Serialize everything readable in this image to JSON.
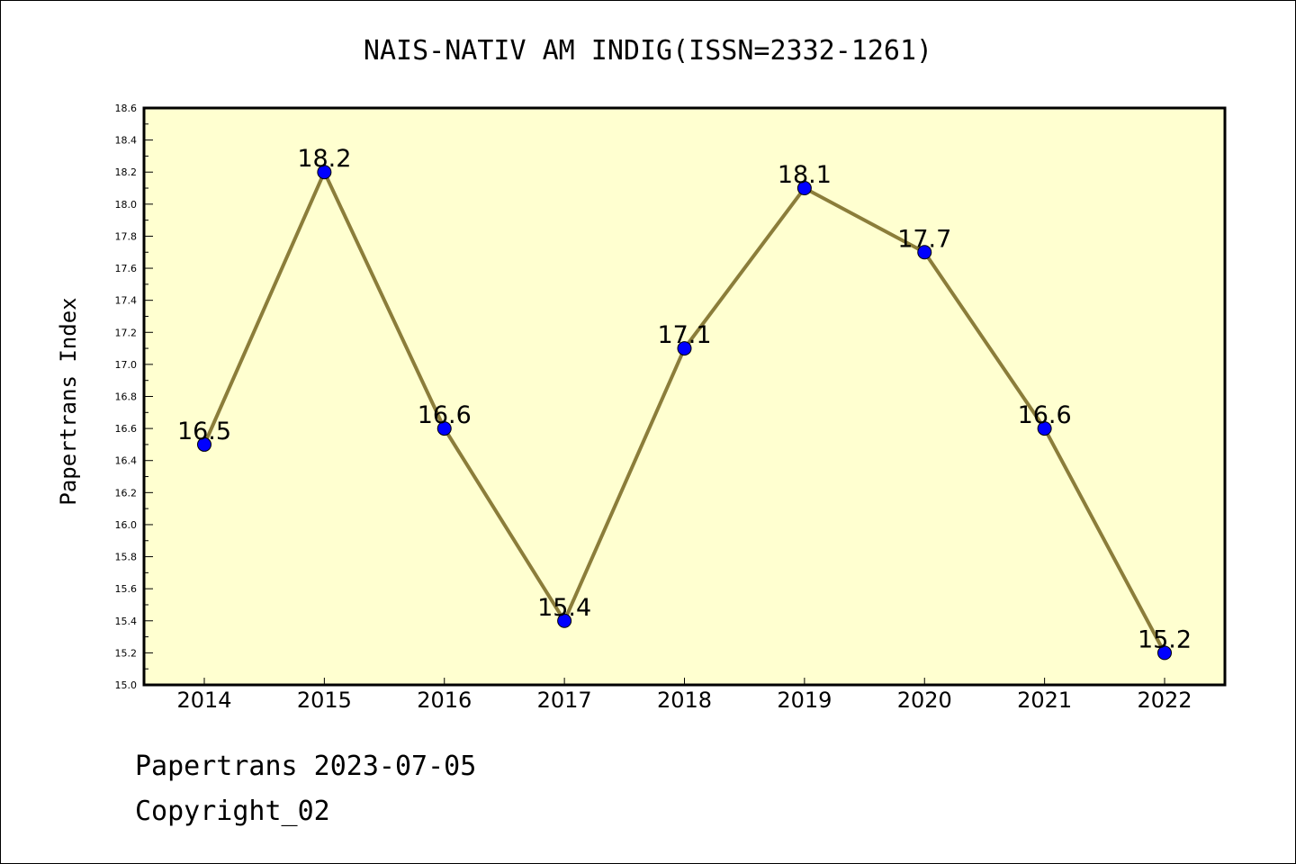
{
  "chart_data": {
    "type": "line",
    "title": "NAIS-NATIV AM INDIG(ISSN=2332-1261)",
    "ylabel": "Papertrans Index",
    "xlabel": "",
    "categories": [
      "2014",
      "2015",
      "2016",
      "2017",
      "2018",
      "2019",
      "2020",
      "2021",
      "2022"
    ],
    "series": [
      {
        "values": [
          16.5,
          18.2,
          16.6,
          15.4,
          17.1,
          18.1,
          17.7,
          16.6,
          15.2
        ],
        "labels": [
          "16.5",
          "18.2",
          "16.6",
          "15.4",
          "17.1",
          "18.1",
          "17.7",
          "16.6",
          "15.2"
        ],
        "line_color": "#8b7d3a",
        "marker_color": "#0000ff"
      }
    ],
    "ylim": [
      15.0,
      18.6
    ],
    "yticks": [
      "15.0",
      "15.2",
      "15.4",
      "15.6",
      "15.8",
      "16.0",
      "16.2",
      "16.4",
      "16.6",
      "16.8",
      "17.0",
      "17.2",
      "17.4",
      "17.6",
      "17.8",
      "18.0",
      "18.2",
      "18.4",
      "18.6"
    ],
    "grid": false,
    "plot_background": "#ffffd0"
  },
  "footer": {
    "date_line": "Papertrans 2023-07-05",
    "copyright": "Copyright_02"
  }
}
